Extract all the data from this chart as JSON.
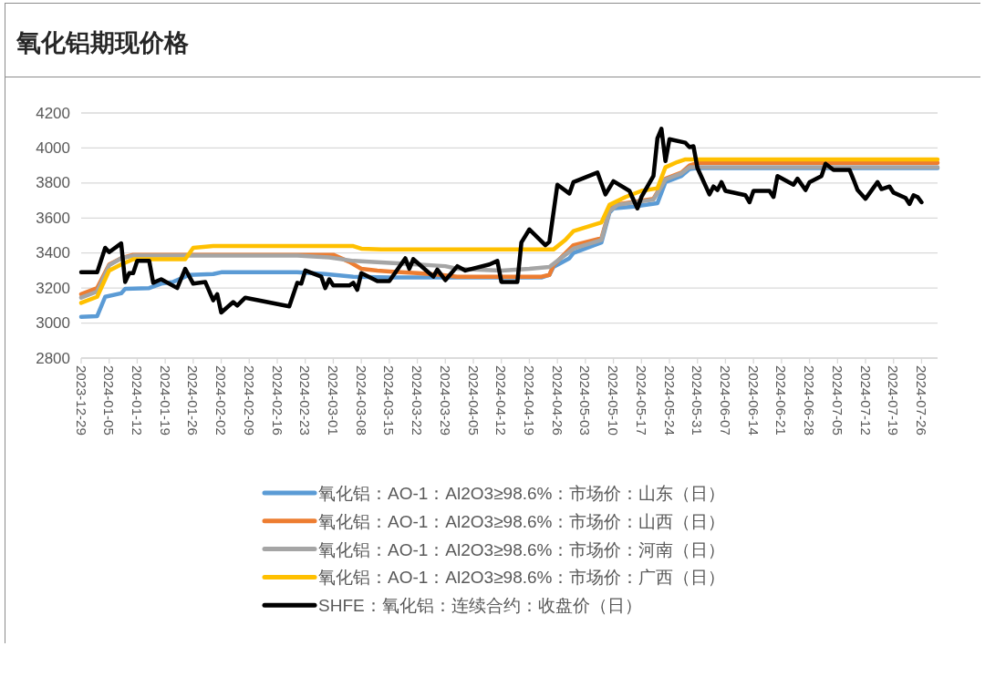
{
  "chart_data": {
    "type": "line",
    "title": "氧化铝期现价格",
    "xlim": [
      "2023-12-29",
      "2024-07-30"
    ],
    "xticks": [
      "2023-12-29",
      "2024-01-05",
      "2024-01-12",
      "2024-01-19",
      "2024-01-26",
      "2024-02-02",
      "2024-02-09",
      "2024-02-16",
      "2024-02-23",
      "2024-03-01",
      "2024-03-08",
      "2024-03-15",
      "2024-03-22",
      "2024-03-29",
      "2024-04-05",
      "2024-04-12",
      "2024-04-19",
      "2024-04-26",
      "2024-05-03",
      "2024-05-10",
      "2024-05-17",
      "2024-05-24",
      "2024-05-31",
      "2024-06-07",
      "2024-06-14",
      "2024-06-21",
      "2024-06-28",
      "2024-07-05",
      "2024-07-12",
      "2024-07-19",
      "2024-07-26"
    ],
    "ylim": [
      2800,
      4200
    ],
    "yticks": [
      2800,
      3000,
      3200,
      3400,
      3600,
      3800,
      4000,
      4200
    ],
    "grid": "y",
    "legend": "bottom",
    "series": [
      {
        "name": "氧化铝：AO-1：Al2O3≥98.6%：市场价：山东（日）",
        "color": "#5b9bd5",
        "x": [
          "2023-12-29",
          "2024-01-02",
          "2024-01-04",
          "2024-01-08",
          "2024-01-09",
          "2024-01-15",
          "2024-01-18",
          "2024-01-21",
          "2024-01-25",
          "2024-01-31",
          "2024-02-02",
          "2024-02-21",
          "2024-02-28",
          "2024-03-06",
          "2024-03-15",
          "2024-04-22",
          "2024-04-24",
          "2024-04-25",
          "2024-04-29",
          "2024-04-30",
          "2024-05-07",
          "2024-05-09",
          "2024-05-10",
          "2024-05-15",
          "2024-05-21",
          "2024-05-23",
          "2024-05-27",
          "2024-05-29",
          "2024-05-31",
          "2024-07-30"
        ],
        "values": [
          3035,
          3040,
          3150,
          3170,
          3195,
          3200,
          3225,
          3235,
          3275,
          3280,
          3290,
          3290,
          3280,
          3265,
          3260,
          3260,
          3275,
          3320,
          3370,
          3400,
          3460,
          3630,
          3655,
          3665,
          3685,
          3805,
          3840,
          3880,
          3885,
          3885
        ]
      },
      {
        "name": "氧化铝：AO-1：Al2O3≥98.6%：市场价：山西（日）",
        "color": "#ed7d31",
        "x": [
          "2023-12-29",
          "2024-01-02",
          "2024-01-05",
          "2024-01-08",
          "2024-01-11",
          "2024-03-01",
          "2024-03-05",
          "2024-03-08",
          "2024-03-12",
          "2024-03-15",
          "2024-03-22",
          "2024-03-28",
          "2024-04-01",
          "2024-04-22",
          "2024-04-24",
          "2024-04-25",
          "2024-04-30",
          "2024-05-07",
          "2024-05-09",
          "2024-05-10",
          "2024-05-20",
          "2024-05-23",
          "2024-05-27",
          "2024-05-29",
          "2024-05-31",
          "2024-07-30"
        ],
        "values": [
          3165,
          3200,
          3335,
          3370,
          3390,
          3390,
          3350,
          3310,
          3300,
          3295,
          3285,
          3275,
          3265,
          3265,
          3275,
          3330,
          3445,
          3485,
          3640,
          3675,
          3710,
          3825,
          3860,
          3900,
          3915,
          3915
        ]
      },
      {
        "name": "氧化铝：AO-1：Al2O3≥98.6%：市场价：河南（日）",
        "color": "#a5a5a5",
        "x": [
          "2023-12-29",
          "2024-01-02",
          "2024-01-05",
          "2024-01-08",
          "2024-01-11",
          "2024-02-21",
          "2024-02-29",
          "2024-03-06",
          "2024-03-14",
          "2024-03-22",
          "2024-03-29",
          "2024-04-01",
          "2024-04-12",
          "2024-04-19",
          "2024-04-24",
          "2024-04-28",
          "2024-04-30",
          "2024-05-07",
          "2024-05-09",
          "2024-05-11",
          "2024-05-20",
          "2024-05-23",
          "2024-05-27",
          "2024-05-29",
          "2024-07-30"
        ],
        "values": [
          3145,
          3180,
          3330,
          3370,
          3385,
          3385,
          3375,
          3355,
          3345,
          3335,
          3325,
          3310,
          3300,
          3310,
          3320,
          3390,
          3425,
          3475,
          3640,
          3675,
          3705,
          3820,
          3855,
          3890,
          3890
        ]
      },
      {
        "name": "氧化铝：AO-1：Al2O3≥98.6%：市场价：广西（日）",
        "color": "#ffc000",
        "x": [
          "2023-12-29",
          "2024-01-02",
          "2024-01-05",
          "2024-01-08",
          "2024-01-11",
          "2024-01-24",
          "2024-01-26",
          "2024-01-31",
          "2024-03-06",
          "2024-03-08",
          "2024-03-13",
          "2024-04-25",
          "2024-04-28",
          "2024-04-30",
          "2024-05-07",
          "2024-05-09",
          "2024-05-13",
          "2024-05-17",
          "2024-05-21",
          "2024-05-23",
          "2024-05-26",
          "2024-05-28",
          "2024-07-30"
        ],
        "values": [
          3115,
          3150,
          3300,
          3335,
          3365,
          3365,
          3430,
          3440,
          3440,
          3425,
          3420,
          3420,
          3475,
          3525,
          3575,
          3675,
          3720,
          3755,
          3770,
          3890,
          3920,
          3935,
          3935
        ]
      },
      {
        "name": "SHFE：氧化铝：连续合约：收盘价（日）",
        "color": "#000000",
        "x": [
          "2023-12-29",
          "2024-01-02",
          "2024-01-04",
          "2024-01-05",
          "2024-01-08",
          "2024-01-09",
          "2024-01-10",
          "2024-01-11",
          "2024-01-12",
          "2024-01-15",
          "2024-01-16",
          "2024-01-18",
          "2024-01-22",
          "2024-01-24",
          "2024-01-26",
          "2024-01-29",
          "2024-01-31",
          "2024-02-01",
          "2024-02-02",
          "2024-02-05",
          "2024-02-06",
          "2024-02-08",
          "2024-02-19",
          "2024-02-21",
          "2024-02-22",
          "2024-02-23",
          "2024-02-27",
          "2024-02-28",
          "2024-02-29",
          "2024-03-01",
          "2024-03-05",
          "2024-03-06",
          "2024-03-07",
          "2024-03-08",
          "2024-03-12",
          "2024-03-15",
          "2024-03-19",
          "2024-03-20",
          "2024-03-21",
          "2024-03-26",
          "2024-03-27",
          "2024-03-29",
          "2024-04-01",
          "2024-04-03",
          "2024-04-09",
          "2024-04-11",
          "2024-04-12",
          "2024-04-16",
          "2024-04-17",
          "2024-04-19",
          "2024-04-23",
          "2024-04-24",
          "2024-04-26",
          "2024-04-29",
          "2024-04-30",
          "2024-05-06",
          "2024-05-08",
          "2024-05-10",
          "2024-05-14",
          "2024-05-16",
          "2024-05-17",
          "2024-05-20",
          "2024-05-21",
          "2024-05-22",
          "2024-05-23",
          "2024-05-24",
          "2024-05-28",
          "2024-05-29",
          "2024-05-30",
          "2024-05-31",
          "2024-06-03",
          "2024-06-04",
          "2024-06-05",
          "2024-06-06",
          "2024-06-07",
          "2024-06-12",
          "2024-06-13",
          "2024-06-14",
          "2024-06-18",
          "2024-06-19",
          "2024-06-20",
          "2024-06-24",
          "2024-06-25",
          "2024-06-27",
          "2024-06-28",
          "2024-07-01",
          "2024-07-02",
          "2024-07-04",
          "2024-07-08",
          "2024-07-09",
          "2024-07-10",
          "2024-07-12",
          "2024-07-15",
          "2024-07-16",
          "2024-07-18",
          "2024-07-19",
          "2024-07-22",
          "2024-07-23",
          "2024-07-24",
          "2024-07-25",
          "2024-07-26"
        ],
        "values": [
          3290,
          3290,
          3430,
          3405,
          3455,
          3235,
          3285,
          3285,
          3355,
          3355,
          3230,
          3250,
          3200,
          3310,
          3225,
          3235,
          3130,
          3165,
          3060,
          3120,
          3100,
          3145,
          3095,
          3230,
          3225,
          3300,
          3265,
          3200,
          3250,
          3215,
          3215,
          3230,
          3190,
          3285,
          3240,
          3240,
          3370,
          3310,
          3365,
          3265,
          3305,
          3245,
          3325,
          3300,
          3335,
          3355,
          3235,
          3235,
          3460,
          3535,
          3445,
          3465,
          3790,
          3740,
          3805,
          3860,
          3735,
          3810,
          3755,
          3655,
          3720,
          3840,
          4055,
          4110,
          3925,
          4050,
          4030,
          4005,
          4010,
          3885,
          3735,
          3780,
          3760,
          3805,
          3755,
          3730,
          3690,
          3755,
          3755,
          3720,
          3840,
          3790,
          3825,
          3760,
          3805,
          3840,
          3910,
          3875,
          3875,
          3820,
          3760,
          3710,
          3805,
          3765,
          3780,
          3745,
          3715,
          3680,
          3730,
          3720,
          3690
        ]
      }
    ]
  }
}
